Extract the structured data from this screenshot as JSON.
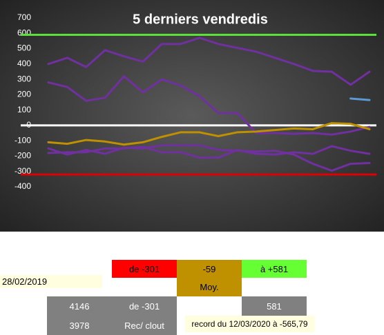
{
  "chart_data": {
    "type": "line",
    "title": "5 derniers vendredis",
    "categories": [
      null,
      null,
      null,
      null,
      null,
      null,
      null,
      null,
      null,
      null,
      null,
      null,
      null,
      null,
      null,
      null,
      null,
      null
    ],
    "series": [
      {
        "color": "#7030a0",
        "values": [
          400,
          440,
          380,
          490,
          450,
          415,
          530,
          530,
          570,
          530,
          505,
          480,
          440,
          400,
          355,
          350,
          265,
          350
        ]
      },
      {
        "color": "#7030a0",
        "values": [
          280,
          250,
          160,
          180,
          320,
          215,
          300,
          260,
          190,
          80,
          80,
          -50,
          -50,
          -55,
          -50,
          -60,
          -40,
          -10
        ]
      },
      {
        "color": "#bf9000",
        "values": [
          -110,
          -120,
          -95,
          -105,
          -125,
          -110,
          -75,
          -45,
          -45,
          -70,
          -45,
          -40,
          -30,
          -20,
          -25,
          15,
          10,
          -25
        ]
      },
      {
        "color": "#7030a0",
        "values": [
          -150,
          -190,
          -160,
          -185,
          -145,
          -150,
          -130,
          -130,
          -130,
          -160,
          -165,
          -170,
          -165,
          -190,
          -250,
          -295,
          -250,
          -245
        ]
      },
      {
        "color": "#7030a0",
        "values": [
          -180,
          -175,
          -175,
          -150,
          -150,
          -140,
          -175,
          -175,
          -210,
          -210,
          -160,
          -185,
          -190,
          -175,
          -185,
          -135,
          -165,
          -185
        ]
      },
      {
        "color": "#5b9bd5",
        "values": [
          null,
          null,
          null,
          null,
          null,
          null,
          null,
          null,
          null,
          null,
          null,
          null,
          null,
          null,
          null,
          null,
          175,
          165
        ]
      }
    ],
    "hlines": [
      {
        "value": 590,
        "color": "#5ce03a"
      },
      {
        "value": 0,
        "color": "#ffffff"
      },
      {
        "value": -320,
        "color": "#e00000"
      }
    ],
    "ylim": [
      -400,
      700
    ],
    "yticks": [
      -400,
      -300,
      -200,
      -100,
      0,
      100,
      200,
      300,
      400,
      500,
      600,
      700
    ],
    "grid": false
  },
  "table": {
    "low": "de -301",
    "avg": "-59",
    "high": "à +581",
    "date": "28/02/2019",
    "avg_label": "Moy.",
    "count1": "4146",
    "low2": "de -301",
    "high2": "581",
    "count2": "3978",
    "rec_label": "Rec/ clout",
    "record": "record du 12/03/2020 à -565,79"
  }
}
